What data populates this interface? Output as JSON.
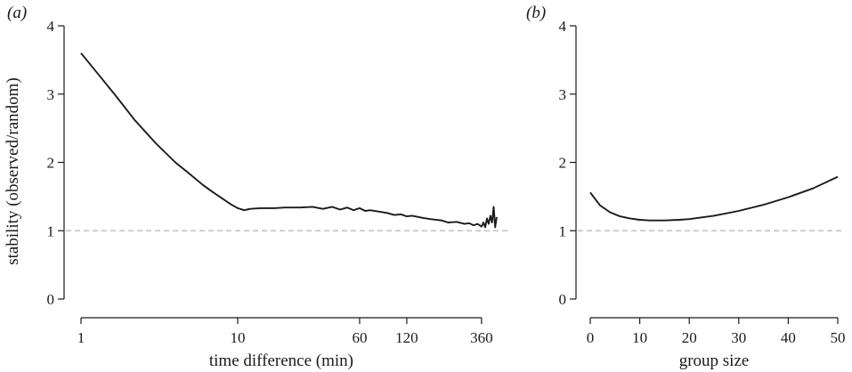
{
  "chart_data": [
    {
      "panel": "(a)",
      "type": "line",
      "xlabel": "time difference (min)",
      "ylabel": "stability (observed/random)",
      "xscale": "log",
      "xlim": [
        1,
        500
      ],
      "ylim": [
        0,
        4
      ],
      "xticks": [
        1,
        10,
        60,
        120,
        360
      ],
      "xtick_labels": [
        "1",
        "10",
        "60",
        "120",
        "360"
      ],
      "yticks": [
        0,
        1,
        2,
        3,
        4
      ],
      "ytick_labels": [
        "0",
        "1",
        "2",
        "3",
        "4"
      ],
      "reference_line": {
        "y": 1,
        "style": "dashed",
        "color": "#b5b5b5"
      },
      "series": [
        {
          "x": [
            1,
            1.3,
            1.7,
            2.2,
            3,
            4,
            5,
            6,
            7,
            8,
            9,
            10,
            11,
            12,
            14,
            17,
            20,
            25,
            30,
            35,
            40,
            45,
            50,
            55,
            60,
            65,
            70,
            80,
            90,
            100,
            110,
            120,
            130,
            150,
            170,
            200,
            220,
            250,
            280,
            300,
            320,
            340,
            360,
            370,
            380,
            390,
            400,
            410,
            420,
            430,
            440,
            450
          ],
          "y": [
            3.6,
            3.28,
            2.95,
            2.62,
            2.28,
            2.0,
            1.82,
            1.67,
            1.56,
            1.47,
            1.39,
            1.33,
            1.3,
            1.32,
            1.33,
            1.33,
            1.34,
            1.34,
            1.35,
            1.32,
            1.35,
            1.31,
            1.34,
            1.3,
            1.33,
            1.29,
            1.3,
            1.28,
            1.26,
            1.23,
            1.24,
            1.21,
            1.22,
            1.19,
            1.17,
            1.15,
            1.12,
            1.13,
            1.1,
            1.11,
            1.08,
            1.1,
            1.06,
            1.12,
            1.05,
            1.18,
            1.1,
            1.22,
            1.12,
            1.35,
            1.05,
            1.2
          ]
        }
      ]
    },
    {
      "panel": "(b)",
      "type": "line",
      "xlabel": "group size",
      "ylabel": "",
      "xscale": "linear",
      "xlim": [
        0,
        50
      ],
      "ylim": [
        0,
        4
      ],
      "xticks": [
        0,
        10,
        20,
        30,
        40,
        50
      ],
      "xtick_labels": [
        "0",
        "10",
        "20",
        "30",
        "40",
        "50"
      ],
      "yticks": [
        0,
        1,
        2,
        3,
        4
      ],
      "ytick_labels": [
        "0",
        "1",
        "2",
        "3",
        "4"
      ],
      "reference_line": {
        "y": 1,
        "style": "dashed",
        "color": "#b5b5b5"
      },
      "series": [
        {
          "x": [
            0,
            2,
            4,
            6,
            8,
            10,
            12,
            15,
            18,
            20,
            25,
            30,
            35,
            40,
            45,
            50
          ],
          "y": [
            1.56,
            1.37,
            1.27,
            1.21,
            1.18,
            1.16,
            1.15,
            1.15,
            1.16,
            1.17,
            1.22,
            1.29,
            1.38,
            1.49,
            1.62,
            1.79
          ]
        }
      ]
    }
  ]
}
